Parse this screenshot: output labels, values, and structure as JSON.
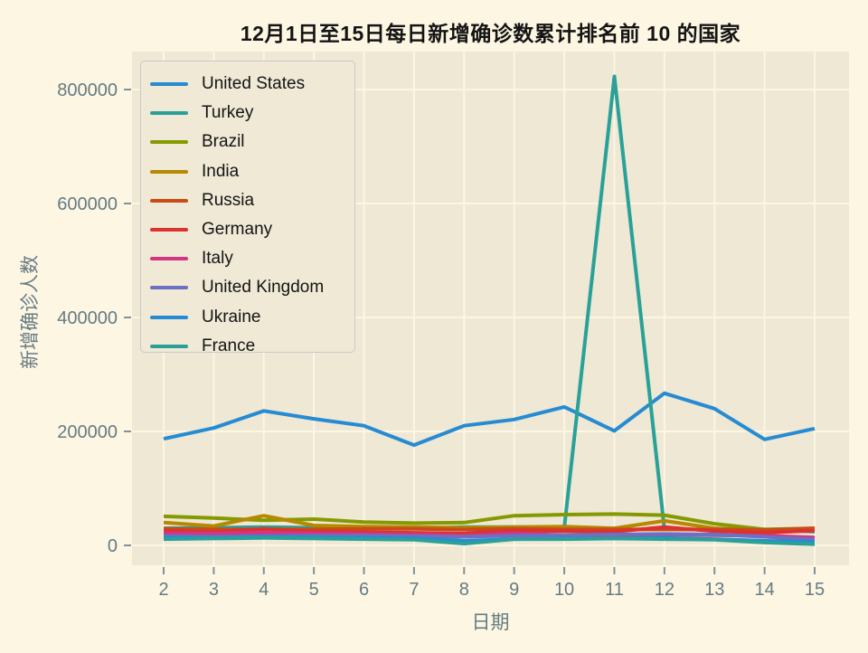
{
  "title": "12月1日至15日每日新增确诊数累计排名前 10 的国家",
  "colors": {
    "figure_bg": "#fdf6e3",
    "axes_bg": "#eee8d5",
    "grid": "#fdf6e3",
    "tick_mark": "#7e939c",
    "tick_text": "#657b83",
    "axis_label_text": "#657b83",
    "title_text": "#141414",
    "legend_bg": "#efe9d6",
    "legend_border": "#c9c9c9",
    "legend_text": "#141414"
  },
  "chart_data": {
    "type": "line",
    "title": "12月1日至15日每日新增确诊数累计排名前 10 的国家",
    "xlabel": "日期",
    "ylabel": "新增确诊人数",
    "x": [
      2,
      3,
      4,
      5,
      6,
      7,
      8,
      9,
      10,
      11,
      12,
      13,
      14,
      15
    ],
    "x_tick_labels": [
      "2",
      "3",
      "4",
      "5",
      "6",
      "7",
      "8",
      "9",
      "10",
      "11",
      "12",
      "13",
      "14",
      "15"
    ],
    "y_ticks": [
      0,
      200000,
      400000,
      600000,
      800000
    ],
    "y_tick_labels": [
      "0",
      "200000",
      "400000",
      "600000",
      "800000"
    ],
    "xlim": [
      1.35,
      15.65
    ],
    "ylim": [
      -35000,
      866000
    ],
    "grid": true,
    "legend_position": "upper left",
    "line_width": 4,
    "series": [
      {
        "name": "United States",
        "color": "#268bd2",
        "values": [
          187000,
          206000,
          236000,
          222000,
          210000,
          176000,
          210000,
          221000,
          243000,
          201000,
          267000,
          240000,
          186000,
          205000
        ]
      },
      {
        "name": "Turkey",
        "color": "#2aa198",
        "values": [
          30000,
          31000,
          32000,
          31000,
          31000,
          30000,
          32000,
          32000,
          31000,
          823000,
          29000,
          27000,
          28000,
          24000
        ]
      },
      {
        "name": "Brazil",
        "color": "#859900",
        "values": [
          51000,
          48000,
          44000,
          46000,
          41000,
          39000,
          40000,
          52000,
          54000,
          55000,
          53000,
          38000,
          28000,
          30000
        ]
      },
      {
        "name": "India",
        "color": "#b58900",
        "values": [
          40000,
          34000,
          52000,
          35000,
          33000,
          32000,
          31000,
          32000,
          33000,
          30000,
          43000,
          30000,
          26000,
          28000
        ]
      },
      {
        "name": "Russia",
        "color": "#cb4b16",
        "values": [
          29000,
          28000,
          28000,
          28000,
          29000,
          29000,
          28000,
          29000,
          28000,
          28000,
          28000,
          28000,
          27000,
          30000
        ]
      },
      {
        "name": "Germany",
        "color": "#dc322f",
        "values": [
          26000,
          23000,
          29000,
          24000,
          23000,
          22000,
          21000,
          26000,
          25000,
          24000,
          32000,
          25000,
          22000,
          26000
        ]
      },
      {
        "name": "Italy",
        "color": "#d33682",
        "values": [
          21000,
          21000,
          22000,
          21000,
          20000,
          19000,
          17000,
          21000,
          18000,
          17000,
          19000,
          18000,
          17000,
          14000
        ]
      },
      {
        "name": "United Kingdom",
        "color": "#6c71c4",
        "values": [
          16000,
          15000,
          16000,
          17000,
          17000,
          16000,
          15000,
          17000,
          18000,
          19000,
          20000,
          19000,
          15000,
          10000
        ]
      },
      {
        "name": "Ukraine",
        "color": "#268bd2",
        "values": [
          14000,
          13000,
          15000,
          14000,
          13000,
          12000,
          8000,
          11000,
          12000,
          12000,
          13000,
          11000,
          8000,
          6000
        ]
      },
      {
        "name": "France",
        "color": "#2aa198",
        "values": [
          11000,
          12000,
          13000,
          12000,
          11000,
          10000,
          3000,
          11000,
          11000,
          12000,
          11000,
          10000,
          5000,
          2000
        ]
      }
    ]
  }
}
